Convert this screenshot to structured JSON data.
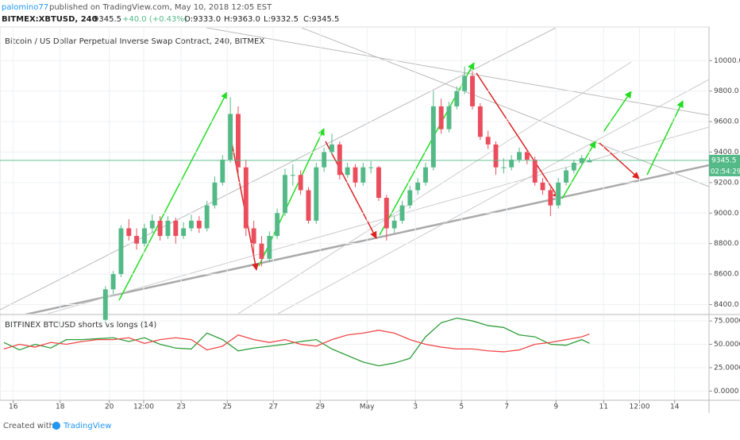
{
  "header": {
    "author": "palomino77",
    "published": "published on TradingView.com, May 10, 2018 12:05 EST",
    "symbol": "BITMEX:XBTUSD, 240",
    "last": "9345.5",
    "change": "+40.0 (+0.43%)",
    "open": "O:9333.0",
    "high": "H:9363.0",
    "low": "L:9332.5",
    "close": "C:9345.5"
  },
  "footer": {
    "created": "Created with",
    "brand": "TradingView"
  },
  "chart_data": [
    {
      "type": "candlestick",
      "title": "Bitcoin / US Dollar Perpetual Inverse Swap Contract, 240, BITMEX",
      "x": [
        13,
        14,
        15,
        16,
        17,
        18,
        19,
        20,
        21,
        22,
        23,
        24,
        25,
        26,
        27,
        28,
        29,
        30,
        31,
        32,
        33,
        34,
        35,
        36,
        37,
        38,
        39,
        40,
        41,
        42,
        43,
        44,
        45,
        46,
        47,
        48,
        49,
        50,
        51,
        52,
        53,
        54,
        55,
        56,
        57,
        58,
        59,
        60,
        61,
        62,
        63,
        64,
        65,
        66,
        67,
        68,
        69,
        70,
        71,
        72,
        73,
        74,
        75
      ],
      "ohlc": [
        [
          8300,
          8520,
          8280,
          8500
        ],
        [
          8500,
          8620,
          8470,
          8600
        ],
        [
          8600,
          8920,
          8580,
          8900
        ],
        [
          8900,
          8960,
          8820,
          8850
        ],
        [
          8850,
          8900,
          8760,
          8800
        ],
        [
          8800,
          8930,
          8780,
          8900
        ],
        [
          8900,
          8990,
          8870,
          8950
        ],
        [
          8950,
          8980,
          8820,
          8850
        ],
        [
          8850,
          8980,
          8830,
          8950
        ],
        [
          8950,
          8970,
          8800,
          8850
        ],
        [
          8850,
          8940,
          8830,
          8900
        ],
        [
          8900,
          8990,
          8880,
          8950
        ],
        [
          8950,
          8980,
          8870,
          8900
        ],
        [
          8900,
          9080,
          8880,
          9050
        ],
        [
          9050,
          9240,
          9030,
          9200
        ],
        [
          9200,
          9380,
          9180,
          9350
        ],
        [
          9350,
          9760,
          9330,
          9650
        ],
        [
          9650,
          9700,
          9250,
          9300
        ],
        [
          9300,
          9350,
          8850,
          8900
        ],
        [
          8900,
          8950,
          8700,
          8800
        ],
        [
          8800,
          8850,
          8650,
          8700
        ],
        [
          8700,
          8880,
          8680,
          8850
        ],
        [
          8850,
          9030,
          8830,
          9000
        ],
        [
          9000,
          9290,
          8980,
          9250
        ],
        [
          9250,
          9320,
          9180,
          9250
        ],
        [
          9250,
          9280,
          9120,
          9150
        ],
        [
          9150,
          9170,
          8930,
          8950
        ],
        [
          8950,
          9330,
          8930,
          9300
        ],
        [
          9300,
          9430,
          9270,
          9400
        ],
        [
          9400,
          9520,
          9380,
          9450
        ],
        [
          9450,
          9470,
          9220,
          9250
        ],
        [
          9250,
          9330,
          9230,
          9300
        ],
        [
          9300,
          9320,
          9170,
          9200
        ],
        [
          9200,
          9330,
          9180,
          9300
        ],
        [
          9300,
          9340,
          9260,
          9300
        ],
        [
          9300,
          9310,
          9080,
          9100
        ],
        [
          9100,
          9120,
          8820,
          8900
        ],
        [
          8900,
          8980,
          8870,
          8950
        ],
        [
          8950,
          9080,
          8930,
          9050
        ],
        [
          9050,
          9180,
          9030,
          9150
        ],
        [
          9150,
          9230,
          9120,
          9200
        ],
        [
          9200,
          9330,
          9180,
          9300
        ],
        [
          9300,
          9800,
          9280,
          9700
        ],
        [
          9700,
          9750,
          9520,
          9550
        ],
        [
          9550,
          9730,
          9530,
          9700
        ],
        [
          9700,
          9830,
          9680,
          9800
        ],
        [
          9800,
          9960,
          9780,
          9900
        ],
        [
          9900,
          9930,
          9680,
          9700
        ],
        [
          9700,
          9720,
          9480,
          9500
        ],
        [
          9500,
          9540,
          9420,
          9450
        ],
        [
          9450,
          9470,
          9250,
          9300
        ],
        [
          9300,
          9360,
          9260,
          9300
        ],
        [
          9300,
          9380,
          9280,
          9350
        ],
        [
          9350,
          9430,
          9330,
          9400
        ],
        [
          9400,
          9420,
          9320,
          9350
        ],
        [
          9350,
          9370,
          9180,
          9200
        ],
        [
          9200,
          9230,
          9120,
          9150
        ],
        [
          9150,
          9170,
          8980,
          9050
        ],
        [
          9050,
          9230,
          9030,
          9200
        ],
        [
          9200,
          9300,
          9180,
          9280
        ],
        [
          9280,
          9350,
          9260,
          9330
        ],
        [
          9330,
          9380,
          9310,
          9360
        ],
        [
          9333,
          9363,
          9332.5,
          9345.5
        ]
      ],
      "up_color": "#53b987",
      "down_color": "#eb4d5c",
      "xlim": [
        -0.5,
        90.3
      ],
      "xticks": [
        {
          "value": 1.2,
          "label": "16"
        },
        {
          "value": 7.2,
          "label": "18"
        },
        {
          "value": 13.5,
          "label": "20"
        },
        {
          "value": 17.9,
          "label": "12:00"
        },
        {
          "value": 22.7,
          "label": "23"
        },
        {
          "value": 28.6,
          "label": "25"
        },
        {
          "value": 34.5,
          "label": "27"
        },
        {
          "value": 40.5,
          "label": "29"
        },
        {
          "value": 46.5,
          "label": "May"
        },
        {
          "value": 52.7,
          "label": "3"
        },
        {
          "value": 58.6,
          "label": "5"
        },
        {
          "value": 64.4,
          "label": "7"
        },
        {
          "value": 70.7,
          "label": "9"
        },
        {
          "value": 76.8,
          "label": "11"
        },
        {
          "value": 81.4,
          "label": "12:00"
        },
        {
          "value": 85.9,
          "label": "14"
        }
      ],
      "ylim": [
        8340,
        10215
      ],
      "yticks": [
        {
          "value": 8400,
          "label": "8400.0"
        },
        {
          "value": 8600,
          "label": "8600.0"
        },
        {
          "value": 8800,
          "label": "8800.0"
        },
        {
          "value": 9000,
          "label": "9000.0"
        },
        {
          "value": 9200,
          "label": "9200.0"
        },
        {
          "value": 9400,
          "label": "9400.0"
        },
        {
          "value": 9600,
          "label": "9600.0"
        },
        {
          "value": 9800,
          "label": "9800.0"
        },
        {
          "value": 10000,
          "label": "10000.0"
        }
      ],
      "last_price": 9345.5,
      "countdown": "02:54:29",
      "grid": true
    },
    {
      "type": "line",
      "title": "BITFINEX BTCUSD shorts vs longs (14)",
      "x": [
        0,
        2,
        4,
        6,
        8,
        10,
        12,
        14,
        16,
        18,
        20,
        22,
        24,
        26,
        28,
        30,
        32,
        34,
        36,
        38,
        40,
        42,
        44,
        46,
        48,
        50,
        52,
        54,
        56,
        58,
        60,
        62,
        64,
        66,
        68,
        70,
        72,
        74,
        75
      ],
      "xlim": [
        -0.5,
        90.3
      ],
      "series": [
        {
          "color": "#2f9e3a",
          "values": [
            52,
            44,
            50,
            46,
            55,
            55,
            56,
            57,
            53,
            57,
            50,
            46,
            45,
            62,
            55,
            43,
            46,
            48,
            50,
            53,
            55,
            45,
            38,
            31,
            27,
            30,
            35,
            58,
            73,
            78,
            75,
            70,
            68,
            60,
            58,
            50,
            49,
            55,
            51
          ]
        },
        {
          "color": "#f04848",
          "values": [
            45,
            50,
            47,
            52,
            50,
            53,
            55,
            55,
            57,
            51,
            55,
            57,
            55,
            44,
            48,
            60,
            55,
            52,
            55,
            50,
            48,
            55,
            60,
            62,
            65,
            62,
            55,
            50,
            47,
            45,
            45,
            43,
            42,
            44,
            50,
            52,
            55,
            58,
            61
          ]
        }
      ],
      "ylim": [
        -9,
        81
      ],
      "yticks": [
        {
          "value": 0,
          "label": "0.0000"
        },
        {
          "value": 25,
          "label": "25.0000"
        },
        {
          "value": 50,
          "label": "50.0000"
        },
        {
          "value": 75,
          "label": "75.0000"
        }
      ],
      "grid": true
    }
  ]
}
